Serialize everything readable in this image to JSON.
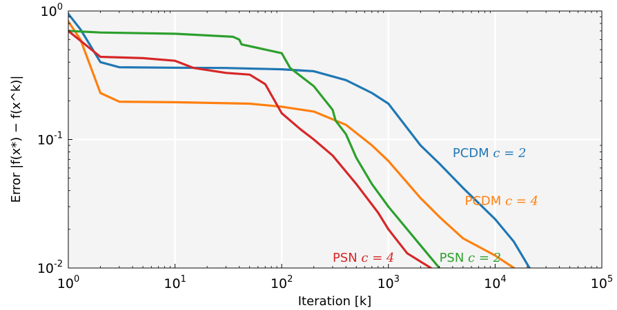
{
  "chart_data": {
    "type": "line",
    "title": "",
    "xlabel": "Iteration [k]",
    "ylabel": "Error |f(x*) − f(x^k)|",
    "xscale": "log",
    "yscale": "log",
    "xlim": [
      1,
      100000
    ],
    "ylim": [
      0.01,
      1
    ],
    "grid": true,
    "background": "#f4f4f4",
    "legend": "none (series labeled inline)",
    "x_ticks": [
      {
        "value": 1,
        "base": "10",
        "exp": "0"
      },
      {
        "value": 10,
        "base": "10",
        "exp": "1"
      },
      {
        "value": 100,
        "base": "10",
        "exp": "2"
      },
      {
        "value": 1000,
        "base": "10",
        "exp": "3"
      },
      {
        "value": 10000,
        "base": "10",
        "exp": "4"
      },
      {
        "value": 100000,
        "base": "10",
        "exp": "5"
      }
    ],
    "y_ticks": [
      {
        "value": 0.01,
        "base": "10",
        "exp": "-2"
      },
      {
        "value": 0.1,
        "base": "10",
        "exp": "-1"
      },
      {
        "value": 1,
        "base": "10",
        "exp": "0"
      }
    ],
    "series": [
      {
        "name": "PCDM c=2",
        "label_text": "PCDM",
        "label_math": "c = 2",
        "color": "#1f77b4",
        "label_at": [
          4000,
          0.073
        ],
        "points": [
          [
            1,
            0.95
          ],
          [
            1.3,
            0.72
          ],
          [
            2,
            0.4
          ],
          [
            3,
            0.365
          ],
          [
            10,
            0.362
          ],
          [
            30,
            0.36
          ],
          [
            100,
            0.352
          ],
          [
            200,
            0.34
          ],
          [
            400,
            0.29
          ],
          [
            700,
            0.23
          ],
          [
            1000,
            0.19
          ],
          [
            2000,
            0.09
          ],
          [
            3000,
            0.065
          ],
          [
            5000,
            0.042
          ],
          [
            10000,
            0.024
          ],
          [
            15000,
            0.016
          ],
          [
            21000,
            0.01
          ]
        ]
      },
      {
        "name": "PCDM c=4",
        "label_text": "PCDM",
        "label_math": "c = 4",
        "color": "#ff7f0e",
        "label_at": [
          5200,
          0.031
        ],
        "points": [
          [
            1,
            0.83
          ],
          [
            1.3,
            0.6
          ],
          [
            2,
            0.23
          ],
          [
            3,
            0.197
          ],
          [
            10,
            0.195
          ],
          [
            50,
            0.19
          ],
          [
            100,
            0.18
          ],
          [
            200,
            0.165
          ],
          [
            400,
            0.13
          ],
          [
            700,
            0.09
          ],
          [
            1000,
            0.068
          ],
          [
            2000,
            0.035
          ],
          [
            3000,
            0.025
          ],
          [
            5000,
            0.017
          ],
          [
            10000,
            0.0125
          ],
          [
            15000,
            0.01
          ]
        ]
      },
      {
        "name": "PSN c=2",
        "label_text": "PSN",
        "label_math": "c = 2",
        "color": "#2ca02c",
        "label_at": [
          3000,
          0.0112
        ],
        "points": [
          [
            1,
            0.7
          ],
          [
            2,
            0.68
          ],
          [
            10,
            0.665
          ],
          [
            35,
            0.63
          ],
          [
            40,
            0.6
          ],
          [
            42,
            0.55
          ],
          [
            100,
            0.47
          ],
          [
            120,
            0.36
          ],
          [
            200,
            0.26
          ],
          [
            300,
            0.17
          ],
          [
            320,
            0.14
          ],
          [
            400,
            0.11
          ],
          [
            500,
            0.072
          ],
          [
            700,
            0.045
          ],
          [
            1000,
            0.03
          ],
          [
            1500,
            0.02
          ],
          [
            2000,
            0.015
          ],
          [
            3000,
            0.01
          ]
        ]
      },
      {
        "name": "PSN c=4",
        "label_text": "PSN",
        "label_math": "c = 4",
        "color": "#d62728",
        "label_at": [
          300,
          0.0112
        ],
        "points": [
          [
            1,
            0.7
          ],
          [
            2,
            0.44
          ],
          [
            5,
            0.43
          ],
          [
            10,
            0.41
          ],
          [
            15,
            0.36
          ],
          [
            30,
            0.33
          ],
          [
            50,
            0.32
          ],
          [
            70,
            0.27
          ],
          [
            100,
            0.16
          ],
          [
            150,
            0.12
          ],
          [
            200,
            0.1
          ],
          [
            300,
            0.075
          ],
          [
            500,
            0.045
          ],
          [
            800,
            0.027
          ],
          [
            1000,
            0.02
          ],
          [
            1500,
            0.013
          ],
          [
            2500,
            0.01
          ]
        ]
      }
    ]
  }
}
